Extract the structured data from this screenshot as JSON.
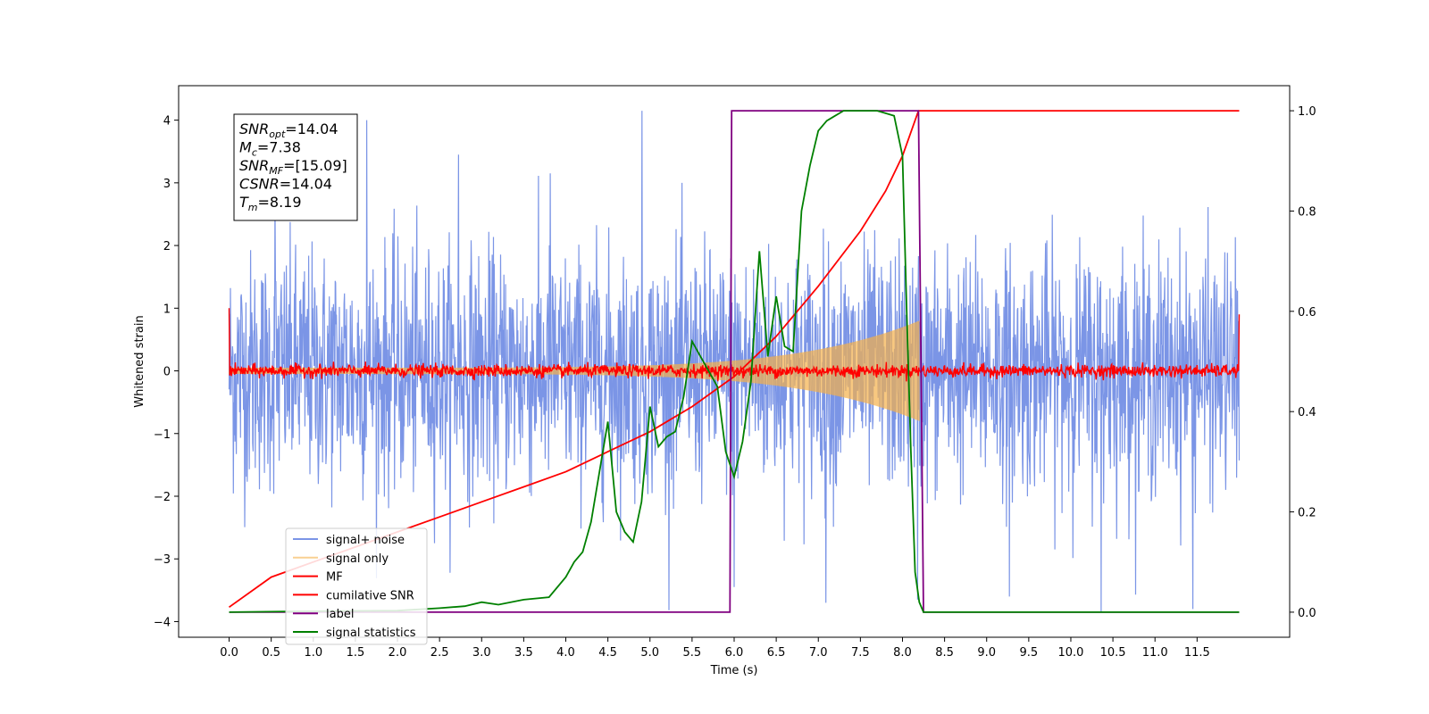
{
  "chart_data": {
    "type": "line",
    "xlabel": "Time (s)",
    "ylabel": "Whitened strain",
    "xlim": [
      -0.6,
      12.6
    ],
    "ylim": [
      -4.25,
      4.55
    ],
    "y2lim": [
      -0.05,
      1.05
    ],
    "xticks": [
      "0.0",
      "0.5",
      "1.0",
      "1.5",
      "2.0",
      "2.5",
      "3.0",
      "3.5",
      "4.0",
      "4.5",
      "5.0",
      "5.5",
      "6.0",
      "6.5",
      "7.0",
      "7.5",
      "8.0",
      "8.5",
      "9.0",
      "9.5",
      "10.0",
      "10.5",
      "11.0",
      "11.5"
    ],
    "yticks": [
      "4",
      "3",
      "2",
      "1",
      "0",
      "−1",
      "−2",
      "−3",
      "−4"
    ],
    "y2ticks": [
      "1.0",
      "0.8",
      "0.6",
      "0.4",
      "0.2",
      "0.0"
    ],
    "grid": false,
    "legend_placement": "lower-left",
    "annotation": {
      "lines": [
        {
          "sym": "SNR",
          "sub": "opt",
          "value": "=14.04"
        },
        {
          "sym": "M",
          "sub": "c",
          "value": "=7.38"
        },
        {
          "sym": "SNR",
          "sub": "MF",
          "value": "=[15.09]"
        },
        {
          "sym": "CSNR",
          "sub": "",
          "value": "=14.04"
        },
        {
          "sym": "T",
          "sub": "m",
          "value": "=8.19"
        }
      ]
    },
    "series": [
      {
        "name": "signal+ noise",
        "color": "#5a7be0",
        "axis": "left",
        "style": "noise",
        "x_range": [
          0.0,
          12.0
        ],
        "amplitude_sigma": 0.95,
        "peak_values": [
          2.8,
          4.0,
          3.45,
          3.15,
          4.15,
          -3.45,
          -3.7,
          -3.65,
          -3.6,
          -3.85,
          -3.8
        ]
      },
      {
        "name": "signal only",
        "color": "#f5b04a",
        "axis": "left",
        "style": "chirp",
        "x_range": [
          0.0,
          8.2
        ],
        "start_amplitude": 0.05,
        "end_amplitude": 0.8
      },
      {
        "name": "MF",
        "color": "#ff0000",
        "axis": "left",
        "style": "noise",
        "x_range": [
          0.0,
          12.0
        ],
        "amplitude_sigma": 0.05,
        "edge_values": [
          1.0,
          0.9
        ]
      },
      {
        "name": "cumilative SNR",
        "color": "#ff0000",
        "axis": "right",
        "x": [
          0.0,
          0.5,
          1.0,
          1.5,
          2.0,
          2.5,
          3.0,
          3.5,
          4.0,
          4.5,
          5.0,
          5.5,
          6.0,
          6.5,
          7.0,
          7.5,
          7.8,
          8.0,
          8.19,
          8.2,
          12.0
        ],
        "values": [
          0.01,
          0.07,
          0.1,
          0.13,
          0.16,
          0.19,
          0.22,
          0.25,
          0.28,
          0.32,
          0.36,
          0.41,
          0.47,
          0.55,
          0.65,
          0.76,
          0.84,
          0.91,
          1.0,
          1.0,
          1.0
        ]
      },
      {
        "name": "label",
        "color": "#800080",
        "axis": "right",
        "x": [
          0.0,
          5.95,
          5.97,
          8.19,
          8.25,
          12.0
        ],
        "values": [
          0.0,
          0.0,
          1.0,
          1.0,
          0.0,
          0.0
        ]
      },
      {
        "name": "signal statistics",
        "color": "#008000",
        "axis": "right",
        "x": [
          0.0,
          1.0,
          2.0,
          2.5,
          2.8,
          3.0,
          3.2,
          3.5,
          3.8,
          4.0,
          4.1,
          4.2,
          4.3,
          4.4,
          4.5,
          4.6,
          4.7,
          4.8,
          4.9,
          5.0,
          5.1,
          5.2,
          5.3,
          5.4,
          5.5,
          5.6,
          5.7,
          5.8,
          5.9,
          6.0,
          6.1,
          6.2,
          6.3,
          6.4,
          6.5,
          6.6,
          6.7,
          6.8,
          6.9,
          7.0,
          7.1,
          7.2,
          7.3,
          7.4,
          7.5,
          7.6,
          7.7,
          7.8,
          7.9,
          8.0,
          8.05,
          8.1,
          8.15,
          8.2,
          8.25,
          8.3,
          12.0
        ],
        "values": [
          0.0,
          0.002,
          0.003,
          0.008,
          0.012,
          0.02,
          0.015,
          0.025,
          0.03,
          0.07,
          0.1,
          0.12,
          0.18,
          0.28,
          0.38,
          0.2,
          0.16,
          0.14,
          0.22,
          0.41,
          0.33,
          0.35,
          0.36,
          0.43,
          0.54,
          0.51,
          0.48,
          0.45,
          0.32,
          0.27,
          0.34,
          0.46,
          0.72,
          0.51,
          0.63,
          0.53,
          0.52,
          0.8,
          0.89,
          0.96,
          0.98,
          0.99,
          1.0,
          1.0,
          1.0,
          1.0,
          1.0,
          0.995,
          0.99,
          0.91,
          0.6,
          0.32,
          0.08,
          0.02,
          0.0,
          0.0,
          0.0
        ]
      }
    ]
  }
}
